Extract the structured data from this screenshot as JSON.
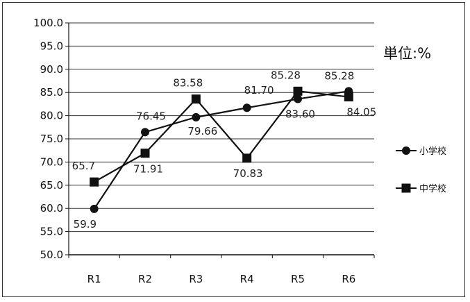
{
  "chart_data": {
    "type": "line",
    "categories": [
      "R1",
      "R2",
      "R3",
      "R4",
      "R5",
      "R6"
    ],
    "ylim": [
      50.0,
      100.0
    ],
    "yticks": [
      "50.0",
      "55.0",
      "60.0",
      "65.0",
      "70.0",
      "75.0",
      "80.0",
      "85.0",
      "90.0",
      "95.0",
      "100.0"
    ],
    "grid": "horizontal",
    "unit_label": "単位:%",
    "legend_position": "right",
    "series": [
      {
        "name": "小学校",
        "marker": "circle",
        "values": [
          59.9,
          76.45,
          79.66,
          81.7,
          83.6,
          85.28
        ],
        "labels": [
          "59.9",
          "76.45",
          "79.66",
          "81.70",
          "83.60",
          "85.28"
        ]
      },
      {
        "name": "中学校",
        "marker": "square",
        "values": [
          65.7,
          71.91,
          83.58,
          70.83,
          85.28,
          84.05
        ],
        "labels": [
          "65.7",
          "71.91",
          "83.58",
          "70.83",
          "85.28",
          "84.05"
        ]
      }
    ],
    "colors": {
      "line": "#111111",
      "grid": "#333333"
    }
  }
}
